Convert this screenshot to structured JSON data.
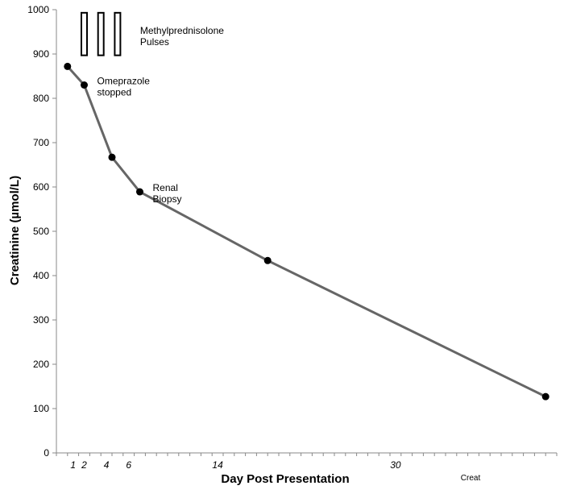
{
  "chart_data": {
    "type": "line",
    "title": "",
    "xlabel": "Day Post Presentation",
    "ylabel": "Creatinine (µmol/L)",
    "ylim": [
      0,
      1000
    ],
    "yticks": [
      0,
      100,
      200,
      300,
      400,
      500,
      600,
      700,
      800,
      900,
      1000
    ],
    "xlim": [
      -0.5,
      44.5
    ],
    "xticks_labeled": [
      {
        "x": 1,
        "label": "1"
      },
      {
        "x": 2,
        "label": "2"
      },
      {
        "x": 4,
        "label": "4"
      },
      {
        "x": 6,
        "label": "6"
      },
      {
        "x": 14,
        "label": "14"
      },
      {
        "x": 30,
        "label": "30"
      }
    ],
    "grid": false,
    "legend": {
      "placement": "bottom-right",
      "entries": [
        "Creat"
      ]
    },
    "series": [
      {
        "name": "Creat",
        "color": "#666666",
        "marker_color": "#000000",
        "points": [
          {
            "x": 0.5,
            "y": 872
          },
          {
            "x": 2.0,
            "y": 830
          },
          {
            "x": 4.5,
            "y": 667
          },
          {
            "x": 7.0,
            "y": 589
          },
          {
            "x": 18.5,
            "y": 434
          },
          {
            "x": 43.5,
            "y": 127
          }
        ]
      }
    ],
    "pulses": {
      "label_line1": "Methylprednisolone",
      "label_line2": "Pulses",
      "x": [
        2.0,
        3.5,
        5.0
      ],
      "y_range": [
        897,
        993
      ]
    },
    "annotations": [
      {
        "line1": "Omeprazole",
        "line2": "stopped",
        "x": 2.0,
        "y": 830
      },
      {
        "line1": "Renal",
        "line2": "Biopsy",
        "x": 7.0,
        "y": 589
      }
    ]
  }
}
